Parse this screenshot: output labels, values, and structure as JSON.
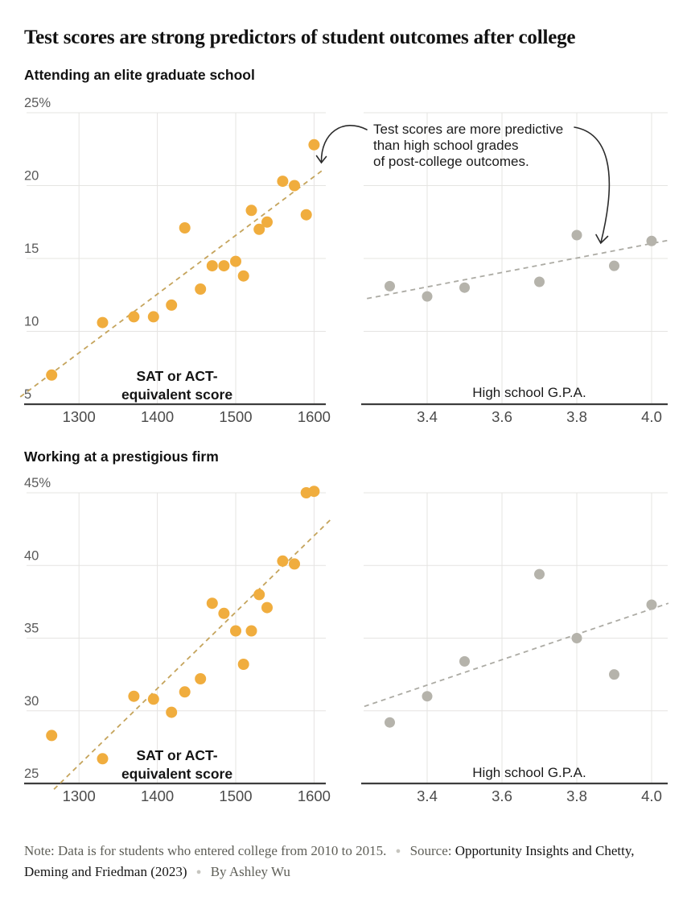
{
  "title": "Test scores are strong predictors of student outcomes after college",
  "sections": [
    {
      "heading": "Attending an elite graduate school"
    },
    {
      "heading": "Working at a prestigious firm"
    }
  ],
  "annotation": {
    "lines": [
      "Test scores are more predictive",
      "than high school grades",
      "of post-college outcomes."
    ]
  },
  "footer": {
    "note": "Note: Data is for students who entered college from 2010 to 2015.",
    "separator": "●",
    "source_label": "Source: ",
    "source": "Opportunity Insights and Chetty, Deming and Friedman (2023)",
    "byline": "By Ashley Wu"
  },
  "colors": {
    "dot_orange": "#F0AD3E",
    "trend_tan": "#C5A45C",
    "dot_gray": "#B5B3AB",
    "trend_gray": "#ACABA4",
    "grid": "#E5E4E2",
    "axis": "#3D3D3D",
    "x_tick": "#4B4B4B",
    "y_tick": "#5A5A5A",
    "inner_label_bold": "#141414",
    "inner_label_regular": "#1A1A1A",
    "arrow": "#2B2B2B"
  },
  "chart_data": [
    {
      "id": "grad-sat",
      "type": "scatter",
      "outcome": "Attending an elite graduate school",
      "xlabel_lines": [
        "SAT or ACT-",
        "equivalent score"
      ],
      "xlabel_bold": true,
      "xlim": [
        1233,
        1615
      ],
      "ylim": [
        5,
        25
      ],
      "x_ticks": [
        1300,
        1400,
        1500,
        1600
      ],
      "x_tick_labels": [
        "1300",
        "1400",
        "1500",
        "1600"
      ],
      "y_ticks": [
        5,
        10,
        15,
        20,
        25
      ],
      "y_tick_labels": [
        "5",
        "10",
        "15",
        "20",
        "25%"
      ],
      "dot_color_key": "dot_orange",
      "trend_color_key": "trend_tan",
      "dot_radius": 7,
      "points": [
        [
          1265,
          7.0
        ],
        [
          1330,
          10.6
        ],
        [
          1370,
          11.0
        ],
        [
          1395,
          11.0
        ],
        [
          1418,
          11.8
        ],
        [
          1435,
          17.1
        ],
        [
          1455,
          12.9
        ],
        [
          1470,
          14.5
        ],
        [
          1485,
          14.5
        ],
        [
          1500,
          14.8
        ],
        [
          1510,
          13.8
        ],
        [
          1520,
          18.3
        ],
        [
          1530,
          17.0
        ],
        [
          1540,
          17.5
        ],
        [
          1560,
          20.3
        ],
        [
          1575,
          20.0
        ],
        [
          1590,
          18.0
        ],
        [
          1600,
          22.8
        ]
      ],
      "trend": [
        [
          1225,
          5.5
        ],
        [
          1612,
          21.1
        ]
      ]
    },
    {
      "id": "grad-gpa",
      "type": "scatter",
      "outcome": "Attending an elite graduate school",
      "xlabel_lines": [
        "High school G.P.A."
      ],
      "xlabel_bold": false,
      "xlim": [
        3.23,
        4.043
      ],
      "ylim": [
        5,
        25
      ],
      "x_ticks": [
        3.4,
        3.6,
        3.8,
        4.0
      ],
      "x_tick_labels": [
        "3.4",
        "3.6",
        "3.8",
        "4.0"
      ],
      "y_ticks": [
        5,
        10,
        15,
        20,
        25
      ],
      "y_tick_labels": [],
      "dot_color_key": "dot_gray",
      "trend_color_key": "trend_gray",
      "dot_radius": 6.5,
      "points": [
        [
          3.3,
          13.1
        ],
        [
          3.4,
          12.4
        ],
        [
          3.5,
          13.0
        ],
        [
          3.7,
          13.4
        ],
        [
          3.8,
          16.6
        ],
        [
          3.9,
          14.5
        ],
        [
          4.0,
          16.2
        ]
      ],
      "trend": [
        [
          3.239,
          12.25
        ],
        [
          4.045,
          16.25
        ]
      ]
    },
    {
      "id": "firm-sat",
      "type": "scatter",
      "outcome": "Working at a prestigious firm",
      "xlabel_lines": [
        "SAT or ACT-",
        "equivalent score"
      ],
      "xlabel_bold": true,
      "xlim": [
        1233,
        1615
      ],
      "ylim": [
        25,
        45
      ],
      "x_ticks": [
        1300,
        1400,
        1500,
        1600
      ],
      "x_tick_labels": [
        "1300",
        "1400",
        "1500",
        "1600"
      ],
      "y_ticks": [
        25,
        30,
        35,
        40,
        45
      ],
      "y_tick_labels": [
        "25",
        "30",
        "35",
        "40",
        "45%"
      ],
      "dot_color_key": "dot_orange",
      "trend_color_key": "trend_tan",
      "dot_radius": 7,
      "points": [
        [
          1265,
          28.3
        ],
        [
          1330,
          26.7
        ],
        [
          1370,
          31.0
        ],
        [
          1395,
          30.8
        ],
        [
          1418,
          29.9
        ],
        [
          1435,
          31.3
        ],
        [
          1455,
          32.2
        ],
        [
          1470,
          37.4
        ],
        [
          1485,
          36.7
        ],
        [
          1500,
          35.5
        ],
        [
          1510,
          33.2
        ],
        [
          1520,
          35.5
        ],
        [
          1530,
          38.0
        ],
        [
          1540,
          37.1
        ],
        [
          1560,
          40.3
        ],
        [
          1575,
          40.1
        ],
        [
          1590,
          45.0
        ],
        [
          1600,
          45.1
        ]
      ],
      "trend": [
        [
          1268,
          24.6
        ],
        [
          1622,
          43.2
        ]
      ]
    },
    {
      "id": "firm-gpa",
      "type": "scatter",
      "outcome": "Working at a prestigious firm",
      "xlabel_lines": [
        "High school G.P.A."
      ],
      "xlabel_bold": false,
      "xlim": [
        3.23,
        4.043
      ],
      "ylim": [
        25,
        45
      ],
      "x_ticks": [
        3.4,
        3.6,
        3.8,
        4.0
      ],
      "x_tick_labels": [
        "3.4",
        "3.6",
        "3.8",
        "4.0"
      ],
      "y_ticks": [
        25,
        30,
        35,
        40,
        45
      ],
      "y_tick_labels": [],
      "dot_color_key": "dot_gray",
      "trend_color_key": "trend_gray",
      "dot_radius": 6.5,
      "points": [
        [
          3.3,
          29.2
        ],
        [
          3.4,
          31.0
        ],
        [
          3.5,
          33.4
        ],
        [
          3.7,
          39.4
        ],
        [
          3.8,
          35.0
        ],
        [
          3.9,
          32.5
        ],
        [
          4.0,
          37.3
        ]
      ],
      "trend": [
        [
          3.232,
          30.3
        ],
        [
          4.045,
          37.4
        ]
      ]
    }
  ]
}
